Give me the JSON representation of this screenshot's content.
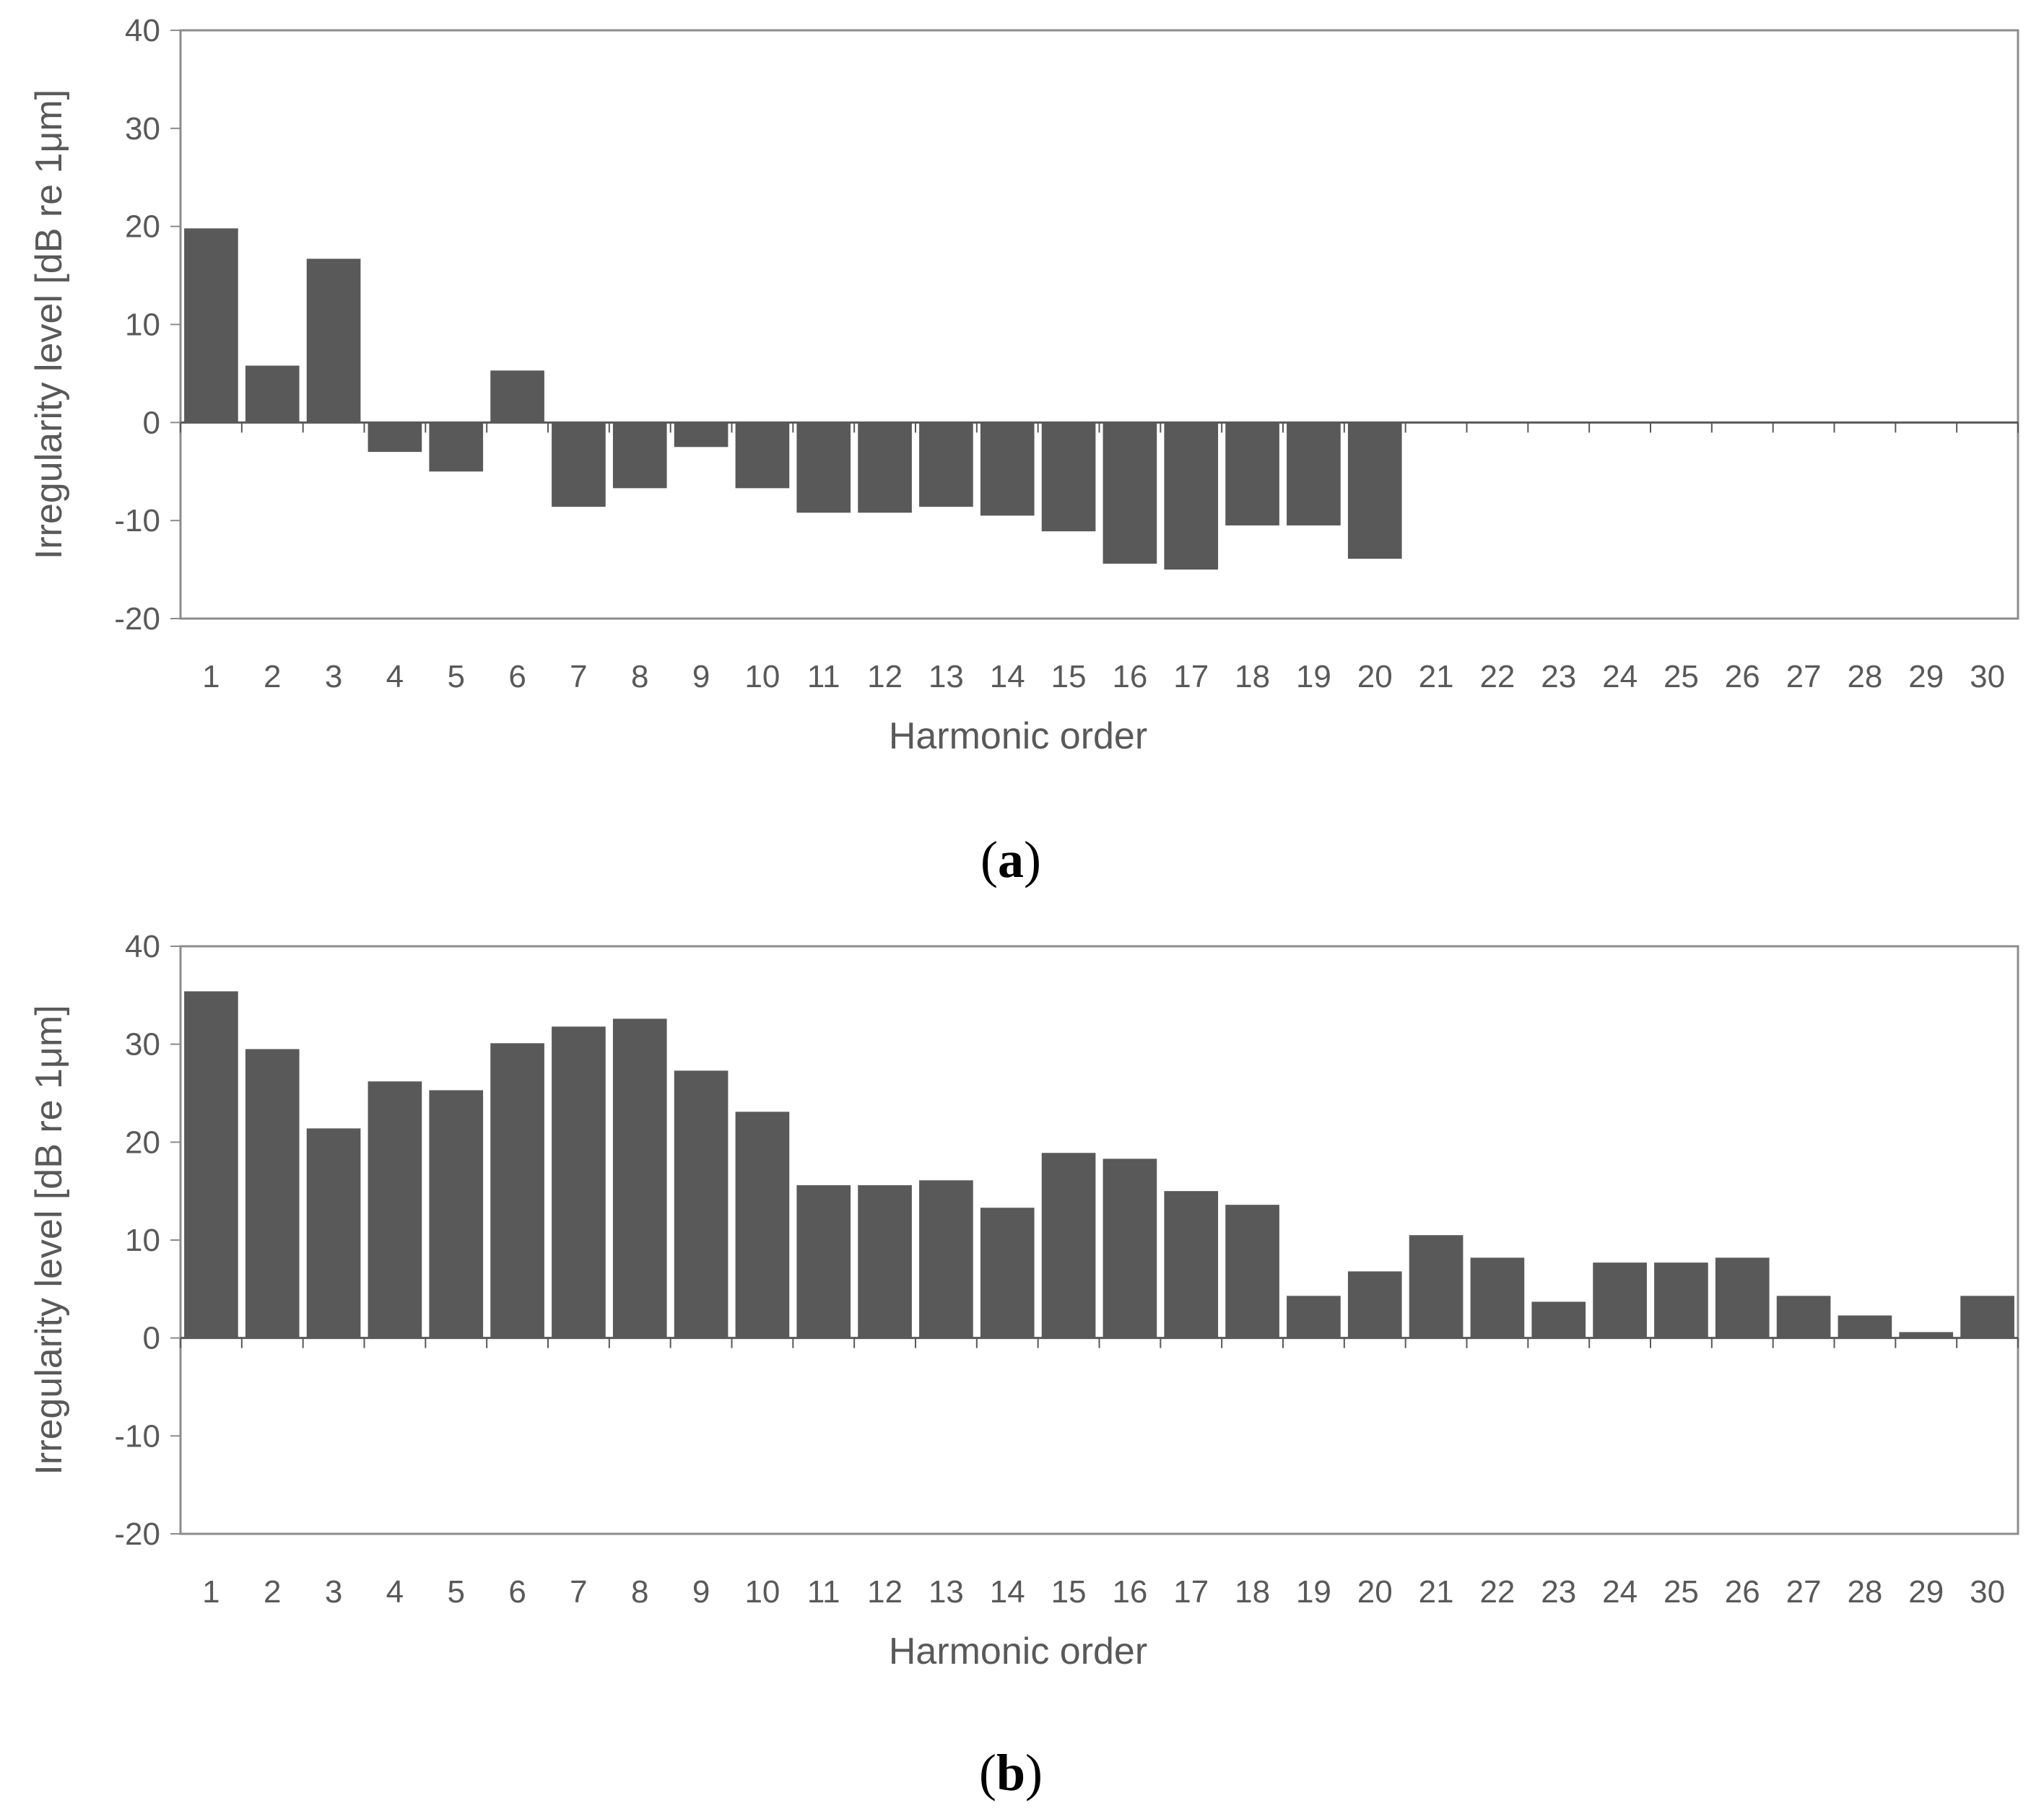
{
  "colors": {
    "bar": "#595959",
    "axis": "#595959",
    "frame": "#8c8c8c",
    "text": "#595959"
  },
  "chart_data": [
    {
      "type": "bar",
      "panel_label": "a",
      "xlabel": "Harmonic order",
      "ylabel": "Irregularity level [dB re 1μm]",
      "ylim": [
        -20,
        40
      ],
      "yticks": [
        -20,
        -10,
        0,
        10,
        20,
        30,
        40
      ],
      "grid": false,
      "categories": [
        "1",
        "2",
        "3",
        "4",
        "5",
        "6",
        "7",
        "8",
        "9",
        "10",
        "11",
        "12",
        "13",
        "14",
        "15",
        "16",
        "17",
        "18",
        "19",
        "20",
        "21",
        "22",
        "23",
        "24",
        "25",
        "26",
        "27",
        "28",
        "29",
        "30"
      ],
      "values": [
        19.8,
        5.8,
        16.7,
        -3.0,
        -5.0,
        5.3,
        -8.6,
        -6.7,
        -2.5,
        -6.7,
        -9.2,
        -9.2,
        -8.6,
        -9.5,
        -11.1,
        -14.4,
        -15.0,
        -10.5,
        -10.5,
        -13.9,
        null,
        null,
        null,
        null,
        null,
        null,
        null,
        null,
        null,
        null
      ]
    },
    {
      "type": "bar",
      "panel_label": "b",
      "xlabel": "Harmonic order",
      "ylabel": "Irregularity level [dB re 1μm]",
      "ylim": [
        -20,
        40
      ],
      "yticks": [
        -20,
        -10,
        0,
        10,
        20,
        30,
        40
      ],
      "grid": false,
      "categories": [
        "1",
        "2",
        "3",
        "4",
        "5",
        "6",
        "7",
        "8",
        "9",
        "10",
        "11",
        "12",
        "13",
        "14",
        "15",
        "16",
        "17",
        "18",
        "19",
        "20",
        "21",
        "22",
        "23",
        "24",
        "25",
        "26",
        "27",
        "28",
        "29",
        "30"
      ],
      "values": [
        35.4,
        29.5,
        21.4,
        26.2,
        25.3,
        30.1,
        31.8,
        32.6,
        27.3,
        23.1,
        15.6,
        15.6,
        16.1,
        13.3,
        18.9,
        18.3,
        15.0,
        13.6,
        4.3,
        6.8,
        10.5,
        8.2,
        3.7,
        7.7,
        7.7,
        8.2,
        4.3,
        2.3,
        0.6,
        4.3
      ]
    }
  ]
}
